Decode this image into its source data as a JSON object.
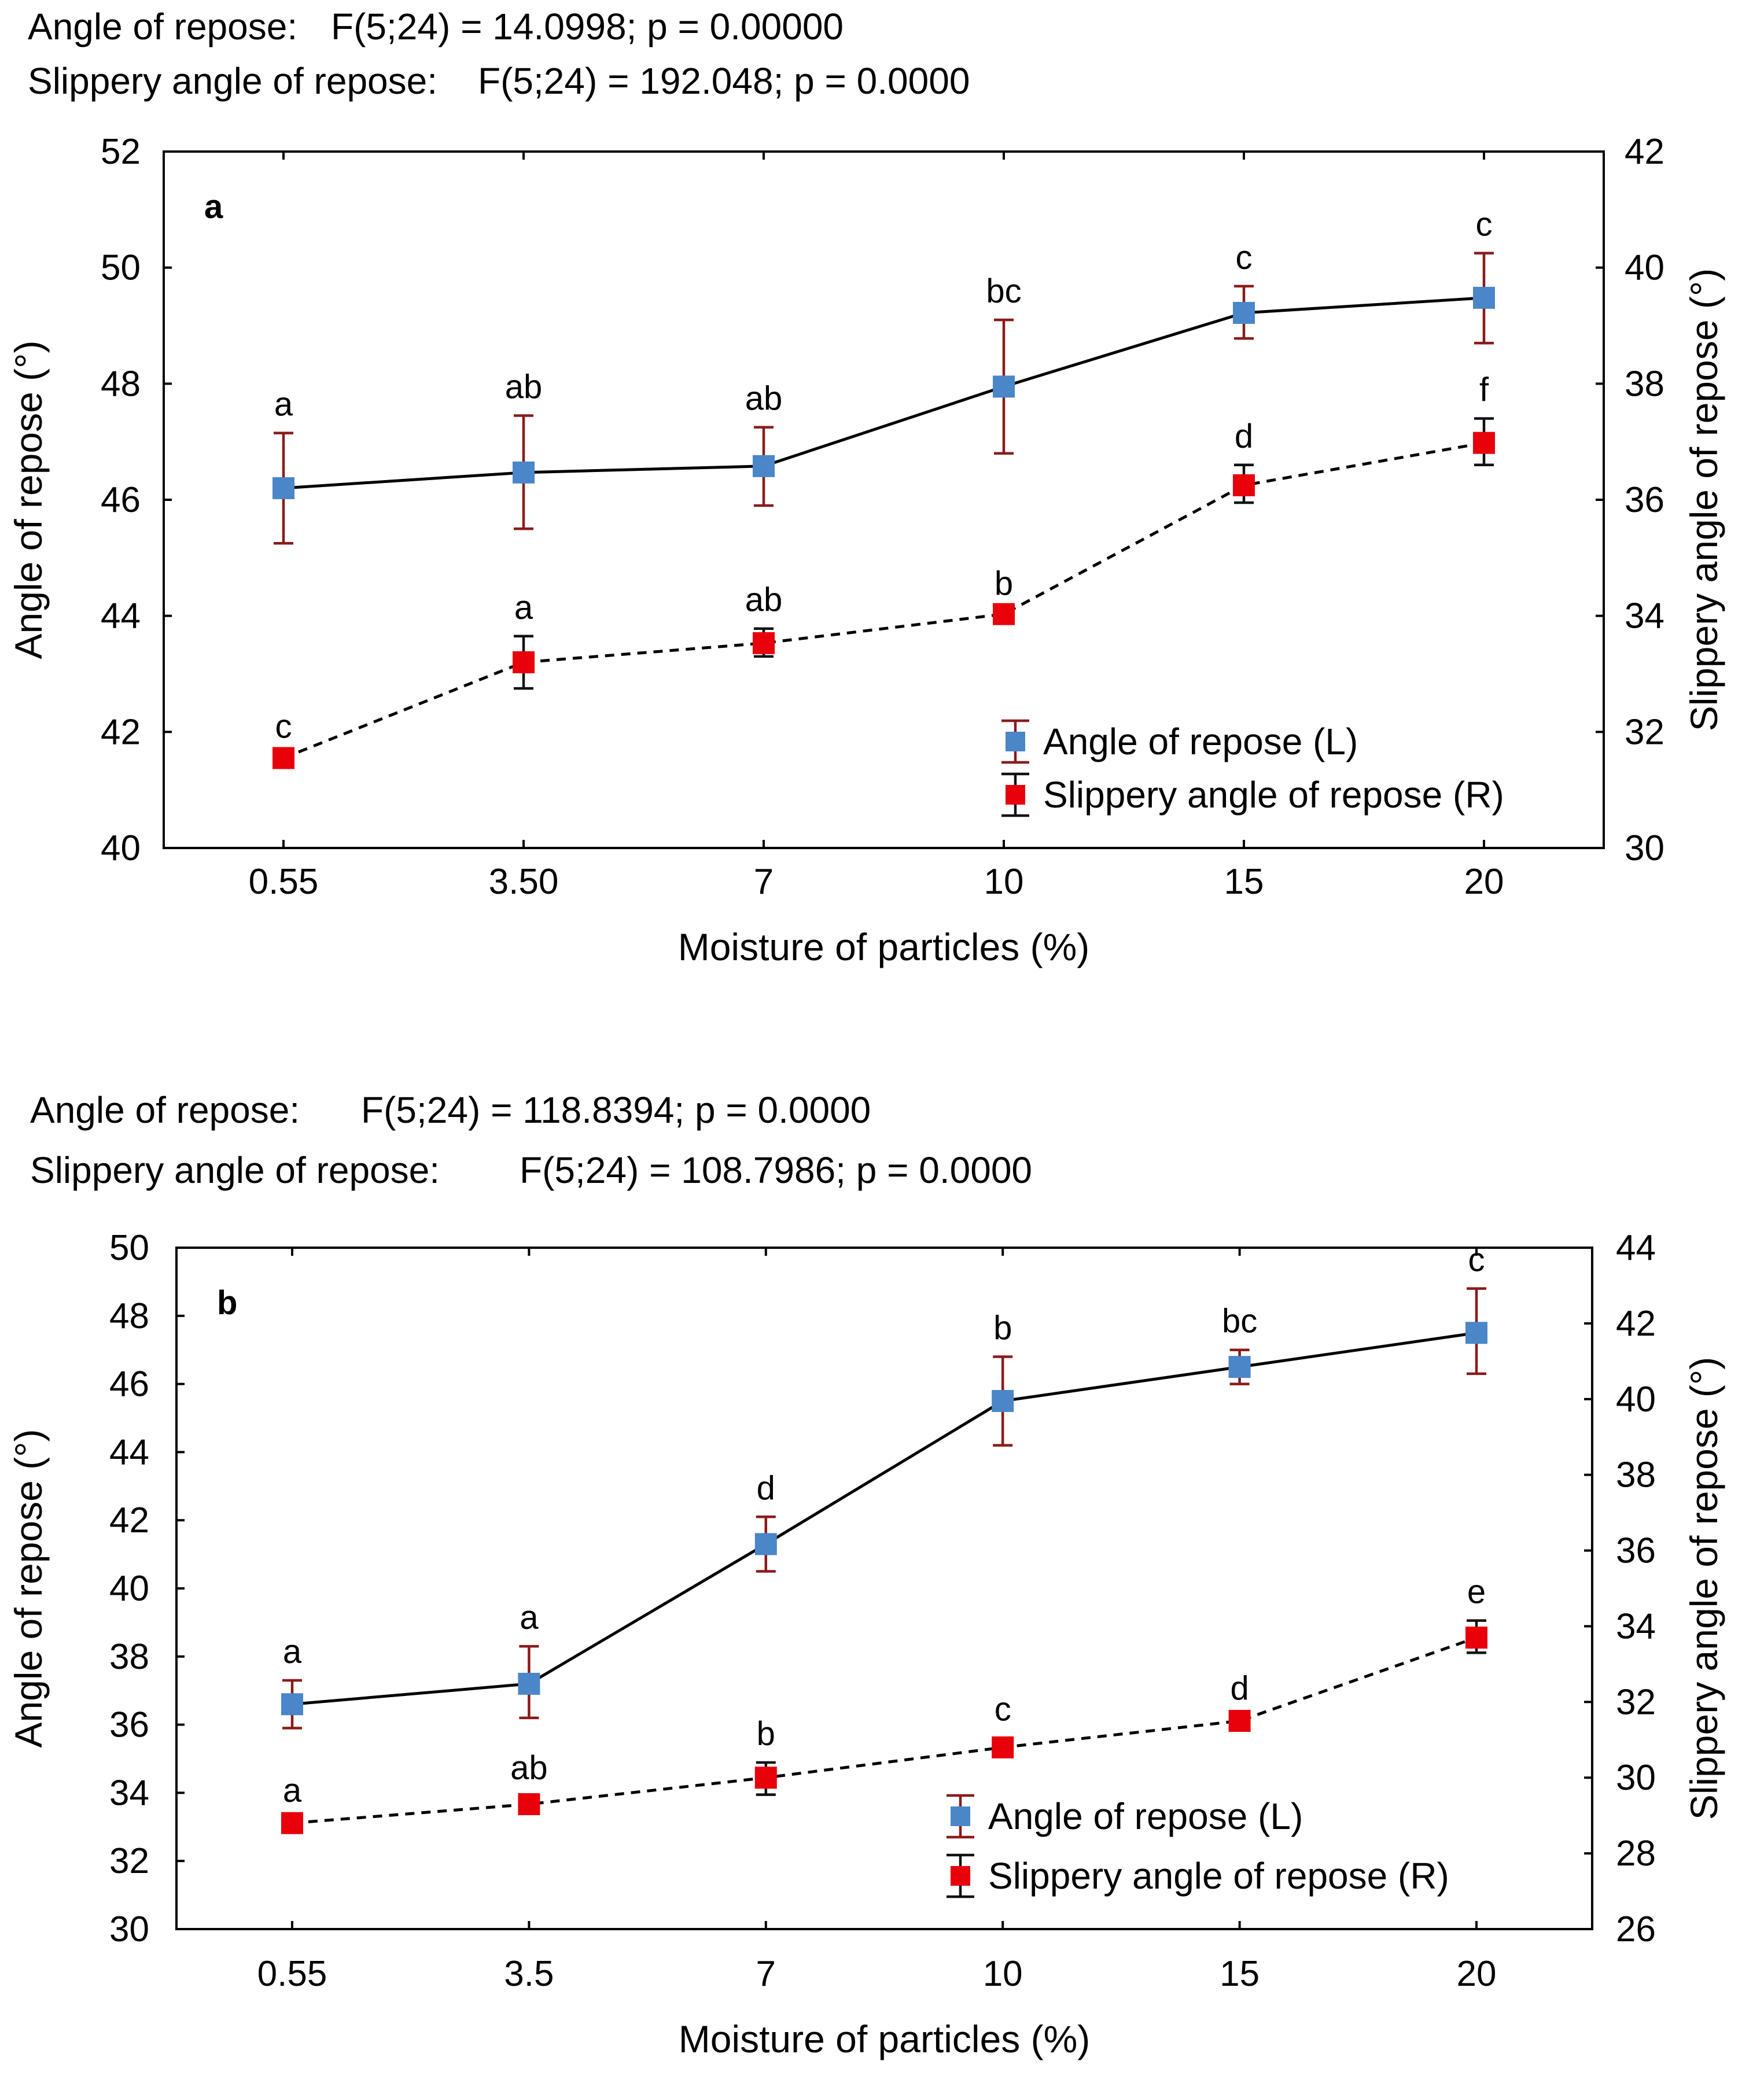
{
  "chart_data": [
    {
      "type": "line",
      "panel_label": "a",
      "stats": [
        {
          "name": "Angle of repose:",
          "value": "F(5;24) = 14.0998; p = 0.00000"
        },
        {
          "name": "Slippery angle of repose:",
          "value": "F(5;24) = 192.048; p = 0.0000"
        }
      ],
      "categories": [
        "0.55",
        "3.50",
        "7",
        "10",
        "15",
        "20"
      ],
      "xlabel": "Moisture of particles (%)",
      "ylabel_left": "Angle of repose (°)",
      "ylabel_right": "Slippery angle of repose (°)",
      "ylim_left": [
        40,
        52
      ],
      "yticks_left": [
        "40",
        "42",
        "44",
        "46",
        "48",
        "50",
        "52"
      ],
      "ylim_right": [
        30,
        42
      ],
      "yticks_right": [
        "30",
        "32",
        "34",
        "36",
        "38",
        "40",
        "42"
      ],
      "series": [
        {
          "name": "Angle of repose (L)",
          "axis": "left",
          "color": "#4a86c8",
          "errcolor": "#8b1a1a",
          "line": "solid",
          "values": [
            46.2,
            46.47,
            46.58,
            47.95,
            49.22,
            49.48
          ],
          "err_low": [
            45.25,
            45.5,
            45.9,
            46.8,
            48.78,
            48.7
          ],
          "err_high": [
            47.15,
            47.45,
            47.25,
            49.1,
            49.68,
            50.25
          ],
          "letters": [
            "a",
            "ab",
            "ab",
            "bc",
            "c",
            "c"
          ]
        },
        {
          "name": "Slippery angle of repose (R)",
          "axis": "right",
          "color": "#e8000b",
          "errcolor": "#111111",
          "line": "dashed",
          "values": [
            31.55,
            33.2,
            33.53,
            34.03,
            36.25,
            36.98
          ],
          "err_low": [
            31.5,
            32.75,
            33.3,
            34.0,
            35.95,
            36.6
          ],
          "err_high": [
            31.6,
            33.65,
            33.78,
            34.06,
            36.6,
            37.4
          ],
          "letters": [
            "c",
            "a",
            "ab",
            "b",
            "d",
            "f"
          ]
        }
      ]
    },
    {
      "type": "line",
      "panel_label": "b",
      "stats": [
        {
          "name": "Angle of repose:",
          "value": "F(5;24) = 118.8394; p = 0.0000"
        },
        {
          "name": "Slippery angle of repose:",
          "value": "F(5;24) = 108.7986; p = 0.0000"
        }
      ],
      "categories": [
        "0.55",
        "3.5",
        "7",
        "10",
        "15",
        "20"
      ],
      "xlabel": "Moisture of particles (%)",
      "ylabel_left": "Angle of repose (°)",
      "ylabel_right": "Slippery angle of repose (°)",
      "ylim_left": [
        30,
        50
      ],
      "yticks_left": [
        "30",
        "32",
        "34",
        "36",
        "38",
        "40",
        "42",
        "44",
        "46",
        "48",
        "50"
      ],
      "ylim_right": [
        26,
        44
      ],
      "yticks_right": [
        "26",
        "28",
        "30",
        "32",
        "34",
        "36",
        "38",
        "40",
        "42",
        "44"
      ],
      "series": [
        {
          "name": "Angle of repose (L)",
          "axis": "left",
          "color": "#4a86c8",
          "errcolor": "#8b1a1a",
          "line": "solid",
          "values": [
            36.6,
            37.2,
            41.3,
            45.5,
            46.5,
            47.5
          ],
          "err_low": [
            35.9,
            36.2,
            40.5,
            44.2,
            46.0,
            46.3
          ],
          "err_high": [
            37.3,
            38.3,
            42.1,
            46.8,
            47.0,
            48.8
          ],
          "letters": [
            "a",
            "a",
            "d",
            "b",
            "bc",
            "c"
          ]
        },
        {
          "name": "Slippery angle of repose (R)",
          "axis": "right",
          "color": "#e8000b",
          "errcolor": "#111111",
          "line": "dashed",
          "values": [
            28.8,
            29.3,
            30.0,
            30.8,
            31.5,
            33.7
          ],
          "err_low": [
            28.7,
            29.1,
            29.55,
            30.55,
            31.4,
            33.3
          ],
          "err_high": [
            28.9,
            29.5,
            30.4,
            31.05,
            31.6,
            34.15
          ],
          "letters": [
            "a",
            "ab",
            "b",
            "c",
            "d",
            "e"
          ]
        }
      ]
    }
  ]
}
